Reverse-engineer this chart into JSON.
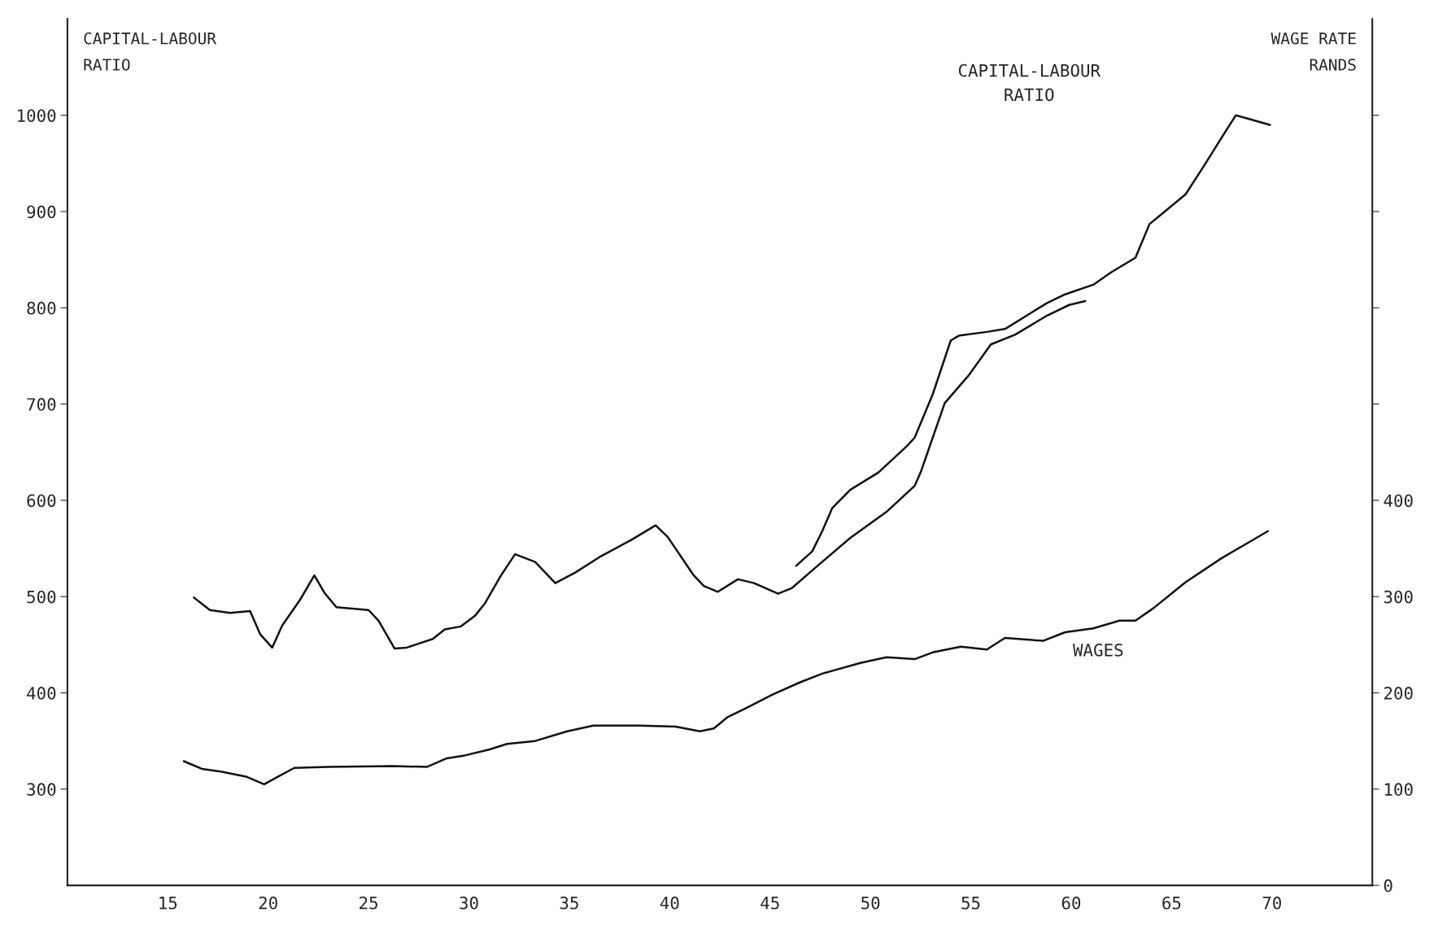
{
  "chart_data": {
    "type": "line",
    "ylabel": "CAPITAL-LABOUR\nRATIO",
    "y2label": "WAGE RATE\nRANDS",
    "xlim": [
      10,
      75
    ],
    "xticks": [
      15,
      20,
      25,
      30,
      35,
      40,
      45,
      50,
      55,
      60,
      65,
      70
    ],
    "ylim": [
      200,
      1100
    ],
    "yticks": [
      300,
      400,
      500,
      600,
      700,
      800,
      900,
      1000
    ],
    "y2lim": [
      0,
      900
    ],
    "y2ticks": [
      0,
      100,
      200,
      300,
      400,
      {
        "value": 500,
        "label": null
      },
      {
        "value": 600,
        "label": null
      },
      {
        "value": 700,
        "label": null
      },
      {
        "value": 800,
        "label": null
      }
    ],
    "grid": false,
    "legend": false,
    "marker": "none",
    "line_style": "solid",
    "series": [
      {
        "color": "#111111",
        "x": [
          16.3,
          17.1,
          18.1,
          19.1,
          19.6,
          20.2,
          20.7,
          21.6,
          22.3,
          22.8,
          23.4,
          25.0,
          25.5,
          26.3,
          26.9,
          28.2,
          28.8,
          29.6,
          30.3,
          30.8,
          31.6,
          32.3,
          33.3,
          34.3,
          35.3,
          36.5,
          38.1,
          39.3,
          39.9,
          41.2,
          41.7,
          42.4,
          43.4,
          44.2,
          45.4,
          46.1,
          47.2,
          49.0,
          50.8,
          52.2,
          52.5,
          53.1,
          53.7,
          54.9,
          56.0,
          57.2,
          58.8,
          59.9,
          60.7
        ],
        "values": [
          499,
          486,
          483,
          485,
          461,
          447,
          470,
          497,
          522,
          504,
          489,
          486,
          475,
          446,
          447,
          456,
          466,
          469,
          480,
          493,
          522,
          544,
          536,
          514,
          525,
          541,
          559,
          574,
          562,
          522,
          511,
          505,
          518,
          514,
          503,
          509,
          529,
          561,
          588,
          615,
          629,
          665,
          701,
          730,
          762,
          772,
          792,
          803,
          807
        ]
      },
      {
        "color": "#111111",
        "x": [
          46.3,
          47.1,
          47.6,
          48.1,
          49.0,
          50.4,
          51.8,
          52.2,
          53.1,
          54.0,
          54.4,
          55.8,
          56.7,
          58.1,
          58.8,
          59.7,
          61.1,
          62.0,
          63.2,
          63.9,
          64.6,
          65.7,
          66.6,
          67.5,
          68.2,
          68.9,
          69.9
        ],
        "values": [
          532,
          547,
          568,
          592,
          611,
          629,
          656,
          665,
          710,
          766,
          771,
          775,
          778,
          796,
          805,
          814,
          824,
          837,
          852,
          887,
          899,
          918,
          947,
          977,
          1000,
          996,
          990
        ]
      },
      {
        "color": "#111111",
        "axis": "y2",
        "x": [
          15.8,
          16.7,
          17.7,
          18.9,
          19.8,
          20.5,
          21.3,
          23.0,
          26.2,
          27.9,
          28.9,
          29.8,
          31.0,
          31.9,
          33.3,
          34.9,
          36.2,
          38.5,
          40.3,
          41.5,
          42.2,
          42.9,
          43.8,
          45.1,
          46.5,
          47.6,
          49.5,
          50.8,
          52.2,
          53.1,
          54.5,
          55.8,
          56.7,
          58.6,
          59.7,
          61.1,
          62.4,
          63.2,
          64.1,
          65.7,
          67.5,
          69.8
        ],
        "values": [
          129,
          121,
          118,
          113,
          105,
          113,
          122,
          123,
          124,
          123,
          132,
          135,
          141,
          147,
          150,
          160,
          166,
          166,
          165,
          160,
          163,
          175,
          184,
          198,
          211,
          220,
          231,
          237,
          235,
          242,
          248,
          245,
          257,
          254,
          263,
          267,
          275,
          275,
          288,
          315,
          340,
          368
        ]
      }
    ],
    "annotations": [
      "CAPITAL-LABOUR\nRATIO",
      "WAGES"
    ]
  }
}
